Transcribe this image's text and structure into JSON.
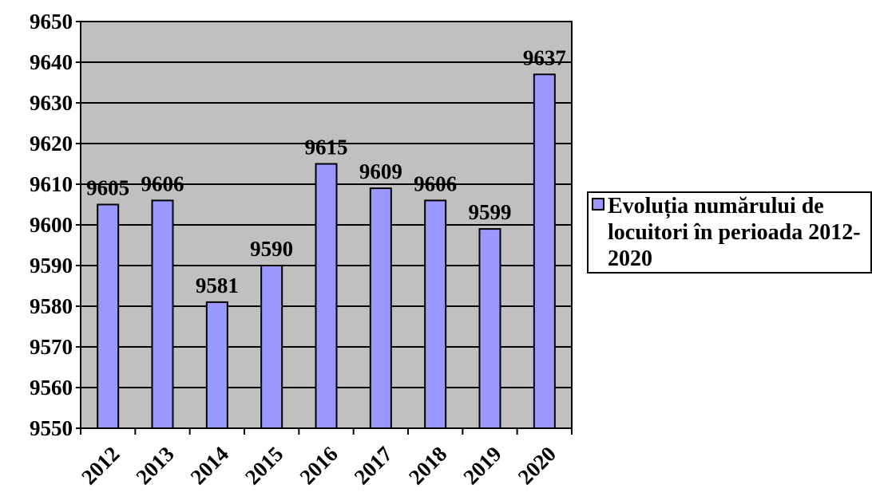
{
  "chart_data": {
    "type": "bar",
    "categories": [
      "2012",
      "2013",
      "2014",
      "2015",
      "2016",
      "2017",
      "2018",
      "2019",
      "2020"
    ],
    "series": [
      {
        "name": "Evoluția numărului de locuitori în perioada 2012-2020",
        "values": [
          9605,
          9606,
          9581,
          9590,
          9615,
          9609,
          9606,
          9599,
          9637
        ]
      }
    ],
    "data_labels": [
      "9605",
      "9606",
      "9581",
      "9590",
      "9615",
      "9609",
      "9606",
      "9599",
      "9637"
    ],
    "y_ticks": [
      "9550",
      "9560",
      "9570",
      "9580",
      "9590",
      "9600",
      "9610",
      "9620",
      "9630",
      "9640",
      "9650"
    ],
    "ylim": [
      9550,
      9650
    ],
    "grid": true,
    "legend_position": "right",
    "colors": {
      "bar_fill": "#9999FF",
      "plot_background": "#C0C0C0",
      "gridline": "#000000"
    }
  },
  "legend": {
    "label": "Evoluția numărului de locuitori în perioada 2012-2020"
  }
}
